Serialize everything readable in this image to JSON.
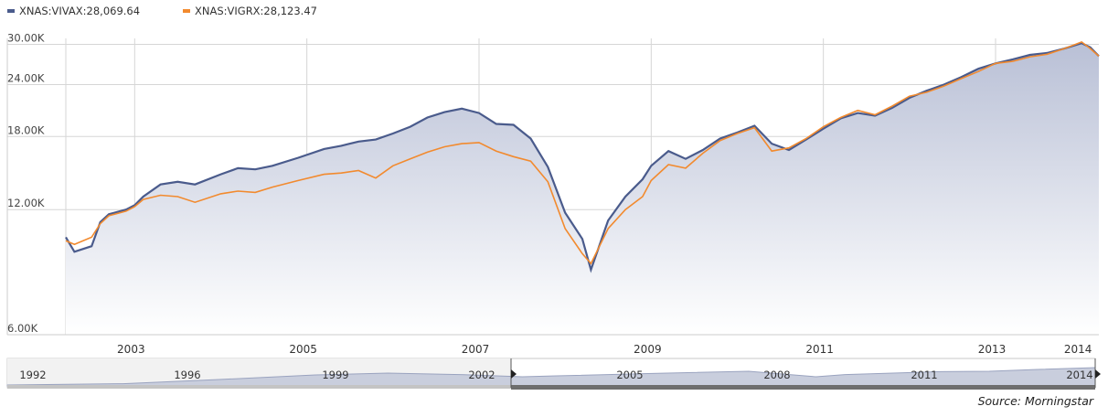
{
  "legend": [
    {
      "label": "XNAS:VIVAX:28,069.64",
      "color": "#4a5b8c"
    },
    {
      "label": "XNAS:VIGRX:28,123.47",
      "color": "#f28a2e"
    }
  ],
  "source": "Source: Morningstar",
  "chart_data": {
    "type": "line",
    "y_scale": "log",
    "ylim": [
      6000,
      31000
    ],
    "xlim": [
      2002.2,
      2014.2
    ],
    "y_ticks": [
      {
        "value": 30000,
        "label": "30.00K"
      },
      {
        "value": 24000,
        "label": "24.00K"
      },
      {
        "value": 18000,
        "label": "18.00K"
      },
      {
        "value": 12000,
        "label": "12.00K"
      },
      {
        "value": 6000,
        "label": "6.00K"
      }
    ],
    "x_grid": [
      2002.2,
      2003,
      2005,
      2007,
      2009,
      2011,
      2013
    ],
    "x_ticks": [
      {
        "value": 2003,
        "label": "2003"
      },
      {
        "value": 2005,
        "label": "2005"
      },
      {
        "value": 2007,
        "label": "2007"
      },
      {
        "value": 2009,
        "label": "2009"
      },
      {
        "value": 2011,
        "label": "2011"
      },
      {
        "value": 2013,
        "label": "2013"
      },
      {
        "value": 2014,
        "label": "2014"
      }
    ],
    "series": [
      {
        "name": "XNAS:VIVAX",
        "color": "#4a5b8c",
        "x": [
          2002.2,
          2002.3,
          2002.5,
          2002.6,
          2002.7,
          2002.9,
          2003.0,
          2003.1,
          2003.3,
          2003.5,
          2003.7,
          2004.0,
          2004.2,
          2004.4,
          2004.6,
          2004.9,
          2005.2,
          2005.4,
          2005.6,
          2005.8,
          2006.0,
          2006.2,
          2006.4,
          2006.6,
          2006.8,
          2007.0,
          2007.2,
          2007.4,
          2007.6,
          2007.8,
          2008.0,
          2008.2,
          2008.3,
          2008.5,
          2008.7,
          2008.9,
          2009.0,
          2009.2,
          2009.4,
          2009.6,
          2009.8,
          2010.0,
          2010.2,
          2010.4,
          2010.6,
          2010.8,
          2011.0,
          2011.2,
          2011.4,
          2011.6,
          2011.8,
          2012.0,
          2012.2,
          2012.4,
          2012.6,
          2012.8,
          2013.0,
          2013.2,
          2013.4,
          2013.6,
          2013.8,
          2014.0,
          2014.1,
          2014.2
        ],
        "values": [
          10300,
          9500,
          9800,
          11200,
          11700,
          12000,
          12300,
          12900,
          13800,
          14000,
          13800,
          14600,
          15100,
          15000,
          15300,
          16000,
          16800,
          17100,
          17500,
          17700,
          18300,
          19000,
          20000,
          20600,
          21000,
          20500,
          19300,
          19200,
          17800,
          15200,
          11800,
          10200,
          8600,
          11300,
          12900,
          14200,
          15300,
          16600,
          15900,
          16700,
          17800,
          18400,
          19100,
          17300,
          16700,
          17700,
          18800,
          19900,
          20500,
          20200,
          21100,
          22300,
          23200,
          24000,
          25000,
          26200,
          27000,
          27600,
          28300,
          28600,
          29300,
          30200,
          29500,
          28100
        ]
      },
      {
        "name": "XNAS:VIGRX",
        "color": "#f28a2e",
        "x": [
          2002.2,
          2002.3,
          2002.5,
          2002.6,
          2002.7,
          2002.9,
          2003.0,
          2003.1,
          2003.3,
          2003.5,
          2003.7,
          2004.0,
          2004.2,
          2004.4,
          2004.6,
          2004.9,
          2005.2,
          2005.4,
          2005.6,
          2005.8,
          2006.0,
          2006.2,
          2006.4,
          2006.6,
          2006.8,
          2007.0,
          2007.2,
          2007.4,
          2007.6,
          2007.8,
          2008.0,
          2008.2,
          2008.3,
          2008.5,
          2008.7,
          2008.9,
          2009.0,
          2009.2,
          2009.4,
          2009.6,
          2009.8,
          2010.0,
          2010.2,
          2010.4,
          2010.6,
          2010.8,
          2011.0,
          2011.2,
          2011.4,
          2011.6,
          2011.8,
          2012.0,
          2012.2,
          2012.4,
          2012.6,
          2012.8,
          2013.0,
          2013.2,
          2013.4,
          2013.6,
          2013.8,
          2014.0,
          2014.1,
          2014.2
        ],
        "values": [
          10100,
          9900,
          10300,
          11100,
          11600,
          11900,
          12200,
          12700,
          13000,
          12900,
          12500,
          13100,
          13300,
          13200,
          13600,
          14100,
          14600,
          14700,
          14900,
          14300,
          15300,
          15900,
          16500,
          17000,
          17300,
          17400,
          16600,
          16100,
          15700,
          14000,
          10800,
          9400,
          8900,
          10800,
          12000,
          12900,
          14100,
          15400,
          15100,
          16400,
          17600,
          18300,
          18900,
          16600,
          16900,
          17800,
          19000,
          20000,
          20800,
          20300,
          21300,
          22500,
          23000,
          23800,
          24800,
          25800,
          27000,
          27300,
          28000,
          28400,
          29300,
          30400,
          29300,
          28100
        ]
      }
    ]
  },
  "navigator": {
    "tick_labels": [
      "1992",
      "1996",
      "1999",
      "2002",
      "2005",
      "2008",
      "2011",
      "2014"
    ]
  }
}
